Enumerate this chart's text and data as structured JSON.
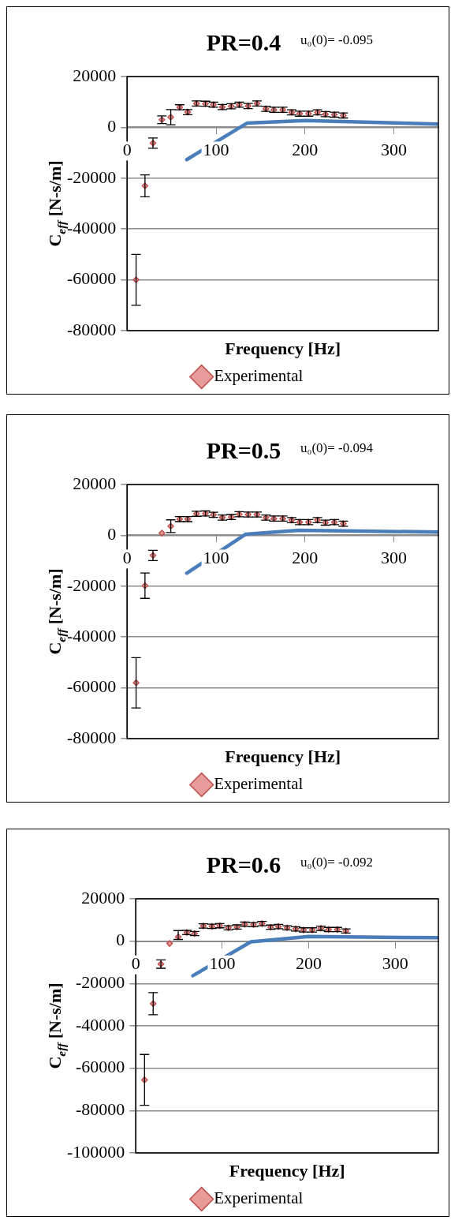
{
  "chart_data": [
    {
      "type": "scatter",
      "title": "PR=0.4",
      "annotations": [
        "u₀(0)= -0.095"
      ],
      "xlabel": "Frequency [Hz]",
      "ylabel": "C$_{eff}$ [N-s/m]",
      "xlim": [
        0,
        350
      ],
      "xticks": [
        0,
        100,
        200,
        300
      ],
      "ylim": [
        -80000,
        20000
      ],
      "yticks": [
        -80000,
        -60000,
        -40000,
        -20000,
        0,
        20000
      ],
      "grid": "y",
      "legend": "bottom",
      "series": [
        {
          "type": "line",
          "color": "#4a7ebb",
          "marker": "none",
          "x": [
            67,
            135,
            200,
            350
          ],
          "values": [
            -12700,
            1700,
            2700,
            1300
          ]
        },
        {
          "type": "scatter",
          "name": "Experimental",
          "color": "#c0504d",
          "marker": "diamond",
          "x": [
            10,
            20,
            29,
            39,
            49,
            59,
            68,
            78,
            88,
            97,
            107,
            117,
            126,
            136,
            146,
            156,
            165,
            175,
            185,
            194,
            204,
            214,
            223,
            233,
            243
          ],
          "values": [
            -60000,
            -23000,
            -6200,
            3000,
            4000,
            7900,
            6000,
            9400,
            9300,
            8900,
            8000,
            8300,
            8900,
            8400,
            9400,
            7300,
            6900,
            6900,
            5900,
            5400,
            5400,
            5900,
            5200,
            5000,
            4700
          ],
          "errors": [
            10000,
            4300,
            2000,
            1500,
            3000,
            1000,
            1000,
            1000,
            1000,
            1000,
            1000,
            1000,
            1000,
            1000,
            1000,
            1000,
            1000,
            1000,
            1000,
            1000,
            1000,
            1000,
            1000,
            1000,
            1000
          ]
        }
      ]
    },
    {
      "type": "scatter",
      "title": "PR=0.5",
      "annotations": [
        "u₀(0)= -0.094"
      ],
      "xlabel": "Frequency [Hz]",
      "ylabel": "C$_{eff}$ [N-s/m]",
      "xlim": [
        0,
        350
      ],
      "xticks": [
        0,
        100,
        200,
        300
      ],
      "ylim": [
        -80000,
        20000
      ],
      "yticks": [
        -80000,
        -60000,
        -40000,
        -20000,
        0,
        20000
      ],
      "grid": "y",
      "legend": "bottom",
      "series": [
        {
          "type": "line",
          "color": "#4a7ebb",
          "marker": "none",
          "x": [
            67,
            133,
            193,
            350
          ],
          "values": [
            -14900,
            400,
            2000,
            1300
          ]
        },
        {
          "type": "scatter",
          "name": "Experimental",
          "color": "#c0504d",
          "marker": "diamond",
          "x": [
            10,
            20,
            29,
            39,
            49,
            59,
            68,
            78,
            88,
            97,
            107,
            117,
            126,
            136,
            146,
            156,
            165,
            175,
            185,
            194,
            204,
            214,
            223,
            233,
            243
          ],
          "values": [
            -58000,
            -19800,
            -7900,
            900,
            3600,
            6400,
            6400,
            8500,
            8600,
            8100,
            7000,
            7200,
            8300,
            8200,
            8200,
            7000,
            6600,
            6600,
            6000,
            5200,
            5200,
            6000,
            5000,
            5200,
            4600
          ],
          "errors": [
            9900,
            5000,
            2000,
            null,
            2500,
            1000,
            1000,
            1000,
            1000,
            1000,
            1000,
            1000,
            1000,
            1000,
            1000,
            1000,
            1000,
            1000,
            1000,
            1000,
            1000,
            1000,
            1000,
            1000,
            1000
          ]
        }
      ]
    },
    {
      "type": "scatter",
      "title": "PR=0.6",
      "annotations": [
        "u₀(0)= -0.092"
      ],
      "xlabel": "Frequency [Hz]",
      "ylabel": "C$_{eff}$ [N-s/m]",
      "xlim": [
        0,
        350
      ],
      "xticks": [
        0,
        100,
        200,
        300
      ],
      "ylim": [
        -100000,
        20000
      ],
      "yticks": [
        -100000,
        -80000,
        -60000,
        -40000,
        -20000,
        0,
        20000
      ],
      "grid": "y",
      "legend": "bottom",
      "series": [
        {
          "type": "line",
          "color": "#4a7ebb",
          "marker": "none",
          "x": [
            66,
            133,
            200,
            350
          ],
          "values": [
            -16300,
            -300,
            2200,
            1600
          ]
        },
        {
          "type": "scatter",
          "name": "Experimental",
          "color": "#c0504d",
          "marker": "diamond",
          "x": [
            10,
            20,
            29,
            39,
            49,
            59,
            68,
            78,
            88,
            97,
            107,
            117,
            126,
            136,
            146,
            156,
            165,
            175,
            185,
            194,
            204,
            214,
            223,
            233,
            243
          ],
          "values": [
            -65500,
            -29500,
            -10800,
            -1100,
            2000,
            4100,
            3600,
            7200,
            7000,
            7300,
            6300,
            6700,
            8000,
            7800,
            8300,
            6600,
            6900,
            6300,
            5800,
            5300,
            5300,
            6100,
            5500,
            5500,
            4800
          ],
          "errors": [
            12000,
            5200,
            2000,
            null,
            [
              800,
              5000
            ],
            1000,
            1000,
            1000,
            1000,
            1000,
            1000,
            1000,
            1000,
            1000,
            1000,
            1000,
            1000,
            1000,
            1000,
            1000,
            1000,
            1000,
            1000,
            1000,
            1000
          ]
        }
      ]
    }
  ]
}
